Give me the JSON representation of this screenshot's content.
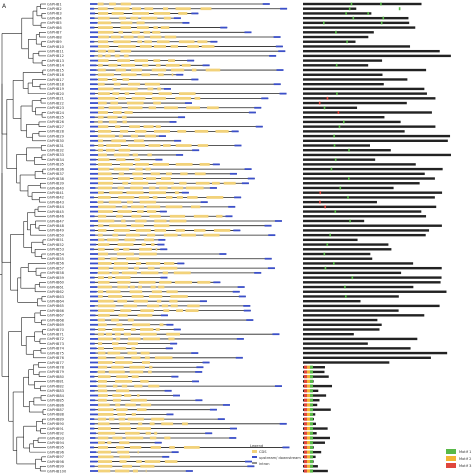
{
  "panel_letter": "A",
  "genes": [
    "GhPHB1",
    "GhPHB2",
    "GhPHB3",
    "GhPHB4",
    "GhPHB5",
    "GhPHB6",
    "GhPHB7",
    "GhPHB8",
    "GhPHB9",
    "GhPHB10",
    "GhPHB11",
    "GhPHB12",
    "GhPHB13",
    "GhPHB14",
    "GhPHB15",
    "GhPHB16",
    "GhPHB17",
    "GhPHB18",
    "GhPHB19",
    "GhPHB20",
    "GhPHB21",
    "GhPHB22",
    "GhPHB23",
    "GhPHB24",
    "GhPHB25",
    "GhPHB26",
    "GhPHB27",
    "GhPHB28",
    "GhPHB29",
    "GhPHB30",
    "GhPHB31",
    "GhPHB32",
    "GhPHB33",
    "GhPHB34",
    "GhPHB35",
    "GhPHB36",
    "GhPHB37",
    "GhPHB38",
    "GhPHB39",
    "GhPHB40",
    "GhPHB41",
    "GhPHB42",
    "GhPHB43",
    "GhPHB44",
    "GhPHB45",
    "GhPHB46",
    "GhPHB47",
    "GhPHB48",
    "GhPHB49",
    "GhPHB50",
    "GhPHB51",
    "GhPHB52",
    "GhPHB53",
    "GhPHB54",
    "GhPHB55",
    "GhPHB56",
    "GhPHB57",
    "GhPHB58",
    "GhPHB59",
    "GhPHB60",
    "GhPHB61",
    "GhPHB62",
    "GhPHB63",
    "GhPHB64",
    "GhPHB65",
    "GhPHB66",
    "GhPHB67",
    "GhPHB68",
    "GhPHB69",
    "GhPHB70",
    "GhPHB71",
    "GhPHB72",
    "GhPHB73",
    "GhPHB74",
    "GhPHB75",
    "GhPHB76",
    "GhPHB77",
    "GhPHB78",
    "GhPHB79",
    "GhPHB80",
    "GhPHB81",
    "GhPHB82",
    "GhPHB83",
    "GhPHB84",
    "GhPHB85",
    "GhPHB86",
    "GhPHB87",
    "GhPHB88",
    "GhPHB89",
    "GhPHB90",
    "GhPHB91",
    "GhPHB92",
    "GhPHB93",
    "GhPHB94",
    "GhPHB95",
    "GhPHB96",
    "GhPHB97",
    "GhPHB98",
    "GhPHB99",
    "GhPHB100"
  ],
  "gene_structure_legend": {
    "title": "Legend",
    "items": [
      {
        "label": "CDS",
        "color": "#f2d27a"
      },
      {
        "label": "upstream/ downstream",
        "color": "#3b4fc8"
      },
      {
        "label": "intron",
        "color": "#222222"
      }
    ]
  },
  "motif_legend": {
    "items": [
      {
        "label": "Motif 1",
        "color": "#58b948"
      },
      {
        "label": "Motif 2",
        "color": "#f2b533"
      },
      {
        "label": "Motif 3",
        "color": "#e0463c"
      }
    ]
  },
  "colors": {
    "cds": "#f2d27a",
    "utr": "#3b4fc8",
    "intron": "#222222",
    "protein_bar": "#222222",
    "tree": "#222222"
  },
  "motif_blocks": {
    "green_dot_rows": [
      0,
      1,
      2,
      3,
      4,
      6,
      8,
      13,
      19,
      22,
      25,
      26,
      28,
      30,
      31,
      33,
      35,
      37,
      39,
      41,
      44,
      46,
      49,
      51,
      53,
      55,
      56,
      58,
      60,
      62
    ],
    "red_dot_rows": [
      20,
      21,
      23,
      40,
      42,
      43
    ],
    "triple_motif_rows_start": 77
  }
}
